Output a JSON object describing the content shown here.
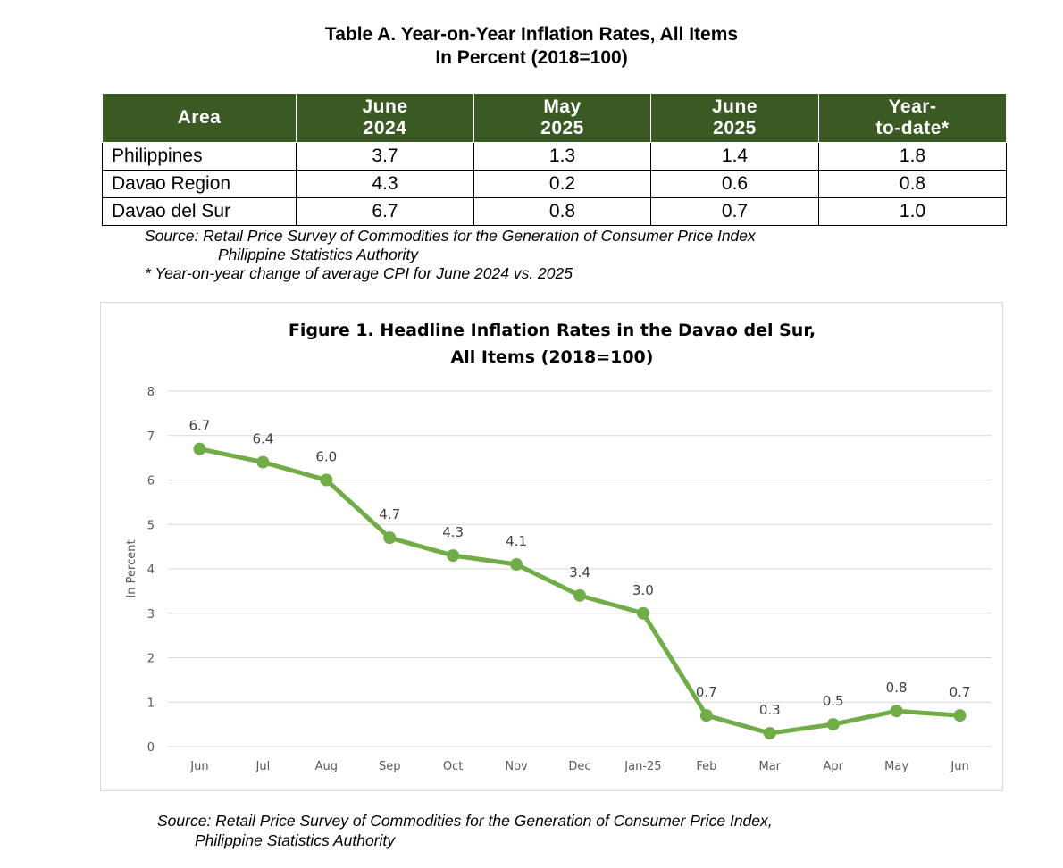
{
  "table": {
    "title_line1": "Table A. Year-on-Year Inflation Rates, All Items",
    "title_line2": "In Percent (2018=100)",
    "headers": {
      "area": "Area",
      "col1_l1": "June",
      "col1_l2": "2024",
      "col2_l1": "May",
      "col2_l2": "2025",
      "col3_l1": "June",
      "col3_l2": "2025",
      "col4_l1": "Year-",
      "col4_l2": "to-date*"
    },
    "rows": [
      {
        "area": "Philippines",
        "c1": "3.7",
        "c2": "1.3",
        "c3": "1.4",
        "c4": "1.8"
      },
      {
        "area": "Davao Region",
        "c1": "4.3",
        "c2": "0.2",
        "c3": "0.6",
        "c4": "0.8"
      },
      {
        "area": "Davao del Sur",
        "c1": "6.7",
        "c2": "0.8",
        "c3": "0.7",
        "c4": "1.0"
      }
    ],
    "header_color": "#3b5a23",
    "source_line1": "Source: Retail Price Survey of Commodities for the Generation of Consumer Price Index",
    "source_line2": "Philippine Statistics Authority",
    "footnote": "* Year-on-year change of average CPI for June 2024 vs. 2025"
  },
  "chart_data": {
    "type": "line",
    "title_line1": "Figure 1. Headline Inflation Rates in the Davao del Sur,",
    "title_line2": "All Items (2018=100)",
    "ylabel": "In Percent",
    "xlabel": "",
    "categories": [
      "Jun",
      "Jul",
      "Aug",
      "Sep",
      "Oct",
      "Nov",
      "Dec",
      "Jan-25",
      "Feb",
      "Mar",
      "Apr",
      "May",
      "Jun"
    ],
    "values": [
      6.7,
      6.4,
      6.0,
      4.7,
      4.3,
      4.1,
      3.4,
      3.0,
      0.7,
      0.3,
      0.5,
      0.8,
      0.7
    ],
    "labels": [
      "6.7",
      "6.4",
      "6.0",
      "4.7",
      "4.3",
      "4.1",
      "3.4",
      "3.0",
      "0.7",
      "0.3",
      "0.5",
      "0.8",
      "0.7"
    ],
    "yticks": [
      "0",
      "1",
      "2",
      "3",
      "4",
      "5",
      "6",
      "7",
      "8"
    ],
    "ylim": [
      0,
      8
    ],
    "grid": true,
    "legend": "none",
    "line_color": "#70ad47"
  },
  "chart_source_line1": "Source: Retail Price Survey of Commodities for the Generation of Consumer Price Index,",
  "chart_source_line2": "Philippine Statistics Authority"
}
